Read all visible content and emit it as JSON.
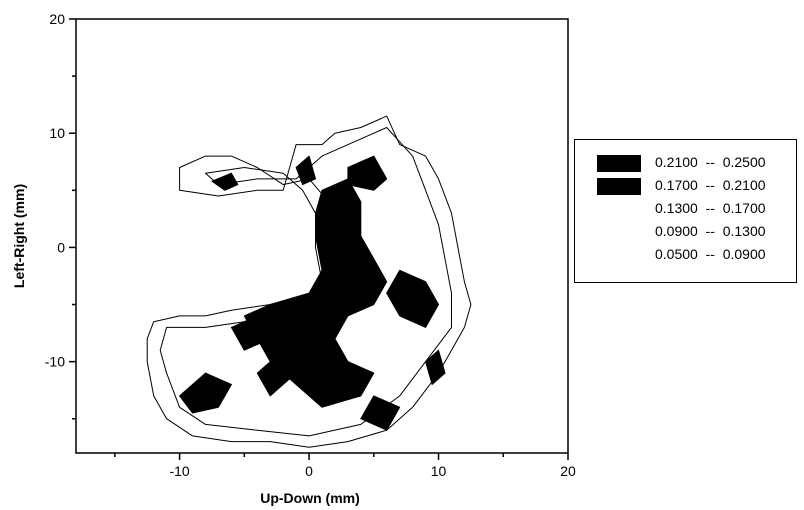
{
  "chart_data": {
    "type": "heatmap",
    "title": "",
    "xlabel": "Up-Down (mm)",
    "ylabel": "Left-Right (mm)",
    "xlim": [
      -18,
      20
    ],
    "ylim": [
      -18,
      20
    ],
    "x_ticks": [
      -10,
      0,
      10,
      20
    ],
    "y_ticks": [
      -10,
      0,
      10,
      20
    ],
    "x_tick_labels": [
      "-10",
      "0",
      "10",
      "20"
    ],
    "y_tick_labels": [
      "-10",
      "0",
      "10",
      "20"
    ],
    "grid": false,
    "legend_position": "right",
    "levels": [
      {
        "label": "0.2100  --  0.2500",
        "min": 0.21,
        "max": 0.25,
        "fill": "#000000"
      },
      {
        "label": "0.1700  --  0.2100",
        "min": 0.17,
        "max": 0.21,
        "fill": "#000000"
      },
      {
        "label": "0.1300  --  0.1700",
        "min": 0.13,
        "max": 0.17,
        "fill": "#ffffff"
      },
      {
        "label": "0.0900  --  0.1300",
        "min": 0.09,
        "max": 0.13,
        "fill": "#ffffff"
      },
      {
        "label": "0.0500  --  0.0900",
        "min": 0.05,
        "max": 0.09,
        "fill": "#ffffff"
      }
    ],
    "outer_contour": [
      [
        -12,
        -6.5
      ],
      [
        -10,
        -6
      ],
      [
        -8,
        -6
      ],
      [
        -6,
        -5.5
      ],
      [
        -3,
        -5
      ],
      [
        -1,
        -4.5
      ],
      [
        1,
        -4.5
      ],
      [
        2,
        -4
      ],
      [
        1.5,
        -1
      ],
      [
        1.5,
        2
      ],
      [
        1.5,
        4
      ],
      [
        0,
        6
      ],
      [
        -2,
        5.5
      ],
      [
        -4,
        7
      ],
      [
        -6,
        8
      ],
      [
        -8,
        8
      ],
      [
        -10,
        7
      ],
      [
        -10,
        5
      ],
      [
        -7,
        4.5
      ],
      [
        -4,
        5
      ],
      [
        -2,
        5
      ],
      [
        -1,
        9
      ],
      [
        1,
        9
      ],
      [
        2,
        10
      ],
      [
        4,
        10.5
      ],
      [
        6,
        11.5
      ],
      [
        7,
        9
      ],
      [
        9,
        8
      ],
      [
        10,
        6
      ],
      [
        11,
        3
      ],
      [
        11.5,
        0
      ],
      [
        12,
        -3
      ],
      [
        12.5,
        -5
      ],
      [
        12,
        -7
      ],
      [
        11,
        -9
      ],
      [
        10,
        -11
      ],
      [
        8,
        -14
      ],
      [
        6,
        -16
      ],
      [
        3,
        -17
      ],
      [
        0,
        -17.5
      ],
      [
        -3,
        -17
      ],
      [
        -6,
        -17
      ],
      [
        -9,
        -16.5
      ],
      [
        -11,
        -15
      ],
      [
        -12,
        -13
      ],
      [
        -12.5,
        -10
      ],
      [
        -12.5,
        -8
      ]
    ],
    "inner_contour": [
      [
        -11,
        -7
      ],
      [
        -8,
        -7
      ],
      [
        -5,
        -6.5
      ],
      [
        -2,
        -6
      ],
      [
        0,
        -5.5
      ],
      [
        1,
        -3
      ],
      [
        0.5,
        0
      ],
      [
        0.5,
        3
      ],
      [
        -0.5,
        5
      ],
      [
        -2,
        6.5
      ],
      [
        -5,
        7
      ],
      [
        -8,
        6.5
      ],
      [
        -7,
        5.5
      ],
      [
        -4,
        6
      ],
      [
        -1,
        6
      ],
      [
        1,
        8
      ],
      [
        4,
        9.5
      ],
      [
        6,
        10.5
      ],
      [
        8,
        8
      ],
      [
        9,
        5
      ],
      [
        10,
        2
      ],
      [
        10.5,
        -1
      ],
      [
        11,
        -4
      ],
      [
        11,
        -7
      ],
      [
        9,
        -10
      ],
      [
        7,
        -13
      ],
      [
        4,
        -15.5
      ],
      [
        0,
        -16.5
      ],
      [
        -4,
        -16
      ],
      [
        -8,
        -15.5
      ],
      [
        -10,
        -14
      ],
      [
        -11,
        -11
      ],
      [
        -11.5,
        -9
      ]
    ],
    "high_regions": [
      {
        "level": 0.21,
        "points": [
          [
            0,
            -4
          ],
          [
            1,
            -2
          ],
          [
            0.5,
            1
          ],
          [
            0.5,
            3
          ],
          [
            1,
            5
          ],
          [
            3,
            6
          ],
          [
            4,
            4
          ],
          [
            4,
            1
          ],
          [
            5,
            -1
          ],
          [
            6,
            -3
          ],
          [
            5,
            -5
          ],
          [
            3,
            -6
          ],
          [
            2,
            -8
          ],
          [
            3,
            -10
          ],
          [
            5,
            -11
          ],
          [
            4,
            -13
          ],
          [
            1,
            -14
          ],
          [
            -1,
            -12
          ],
          [
            -3,
            -10
          ],
          [
            -4,
            -8
          ],
          [
            -5,
            -6
          ],
          [
            -3,
            -5
          ]
        ]
      },
      {
        "level": 0.17,
        "points": [
          [
            -10,
            -13
          ],
          [
            -8,
            -11
          ],
          [
            -6,
            -12
          ],
          [
            -7,
            -14
          ],
          [
            -9,
            -14.5
          ]
        ]
      },
      {
        "level": 0.17,
        "points": [
          [
            -4,
            -11
          ],
          [
            -2,
            -9
          ],
          [
            -1,
            -11
          ],
          [
            -3,
            -13
          ]
        ]
      },
      {
        "level": 0.17,
        "points": [
          [
            5,
            -13
          ],
          [
            7,
            -14
          ],
          [
            6,
            -16
          ],
          [
            4,
            -15
          ]
        ]
      },
      {
        "level": 0.17,
        "points": [
          [
            7,
            -2
          ],
          [
            9,
            -3
          ],
          [
            10,
            -5
          ],
          [
            9,
            -7
          ],
          [
            7,
            -6
          ],
          [
            6,
            -4
          ]
        ]
      },
      {
        "level": 0.17,
        "points": [
          [
            3,
            7
          ],
          [
            5,
            8
          ],
          [
            6,
            6
          ],
          [
            5,
            5
          ],
          [
            3,
            5.5
          ]
        ]
      },
      {
        "level": 0.17,
        "points": [
          [
            -1,
            7
          ],
          [
            0,
            8
          ],
          [
            0.5,
            6
          ],
          [
            -0.5,
            5.5
          ]
        ]
      },
      {
        "level": 0.17,
        "points": [
          [
            -7.5,
            5.8
          ],
          [
            -6,
            6.5
          ],
          [
            -5.5,
            5.5
          ],
          [
            -6.5,
            5
          ]
        ]
      },
      {
        "level": 0.17,
        "points": [
          [
            -6,
            -7
          ],
          [
            -4,
            -6
          ],
          [
            -3,
            -8
          ],
          [
            -5,
            -9
          ]
        ]
      },
      {
        "level": 0.21,
        "points": [
          [
            9,
            -10
          ],
          [
            10,
            -9
          ],
          [
            10.5,
            -11
          ],
          [
            9.5,
            -12
          ]
        ]
      }
    ]
  }
}
